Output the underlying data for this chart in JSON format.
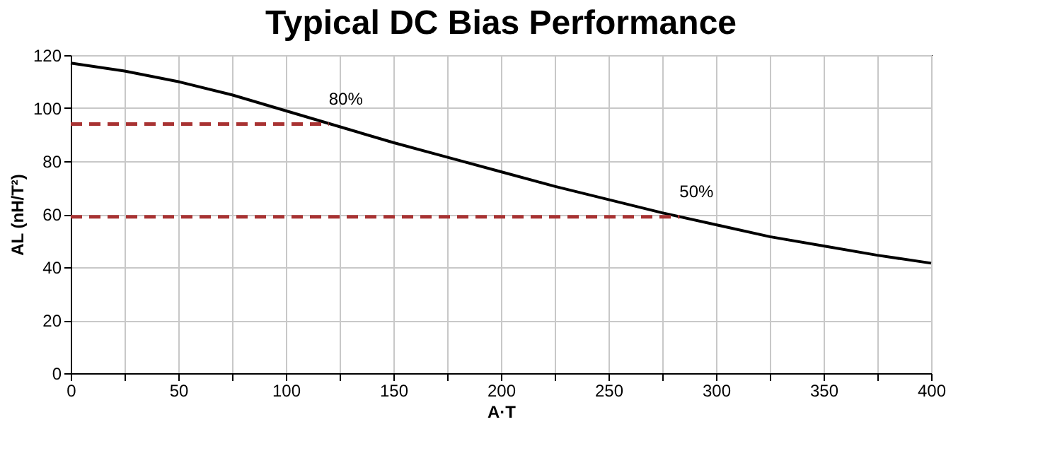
{
  "chart_data": {
    "type": "line",
    "title": "Typical DC Bias Performance",
    "xlabel": "A·T",
    "ylabel": "AL (nH/T²)",
    "x": [
      0,
      25,
      50,
      75,
      100,
      125,
      150,
      175,
      200,
      225,
      250,
      275,
      300,
      325,
      350,
      375,
      400
    ],
    "series": [
      {
        "color": "#000000",
        "values": [
          117,
          114,
          110,
          105,
          99,
          93,
          87,
          81.5,
          76,
          70.5,
          65.5,
          60.5,
          56,
          51.5,
          48,
          44.5,
          41.5
        ],
        "line_style": "solid"
      },
      {
        "type": "line",
        "color": "#a83232",
        "x": [
          0,
          120
        ],
        "values": [
          94,
          94
        ],
        "line_style": "dashed"
      },
      {
        "type": "line",
        "color": "#a83232",
        "x": [
          0,
          283
        ],
        "values": [
          59,
          59
        ],
        "line_style": "dashed"
      }
    ],
    "annotations": [
      "80%",
      "50%"
    ],
    "xlim": [
      0,
      400
    ],
    "ylim": [
      0,
      120
    ],
    "xticks": [
      0,
      {
        "value": 25,
        "label": null
      },
      50,
      {
        "value": 75,
        "label": null
      },
      100,
      {
        "value": 125,
        "label": null
      },
      150,
      {
        "value": 175,
        "label": null
      },
      200,
      {
        "value": 225,
        "label": null
      },
      250,
      {
        "value": 275,
        "label": null
      },
      300,
      {
        "value": 325,
        "label": null
      },
      350,
      {
        "value": 375,
        "label": null
      },
      400
    ],
    "yticks": [
      0,
      20,
      40,
      60,
      80,
      100,
      120
    ],
    "grid": true,
    "legend": false,
    "marker": "none"
  }
}
